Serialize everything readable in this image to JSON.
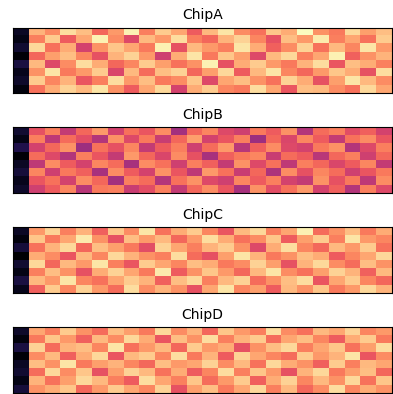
{
  "chart_data": [
    {
      "type": "heatmap",
      "title": "ChipA",
      "tick_labels": false,
      "cells": [
        [
          20,
          78,
          72,
          85,
          80,
          66,
          74,
          88,
          70,
          82,
          76,
          64,
          79,
          86,
          72,
          68,
          81,
          77,
          90,
          73,
          69,
          84,
          75,
          80
        ],
        [
          18,
          70,
          82,
          64,
          76,
          88,
          72,
          60,
          79,
          74,
          85,
          70,
          66,
          78,
          83,
          71,
          62,
          80,
          74,
          87,
          70,
          76,
          68,
          82
        ],
        [
          22,
          84,
          68,
          77,
          58,
          73,
          81,
          76,
          69,
          88,
          62,
          79,
          74,
          70,
          86,
          77,
          65,
          72,
          83,
          68,
          79,
          71,
          86,
          74
        ],
        [
          16,
          66,
          75,
          80,
          71,
          62,
          78,
          83,
          74,
          57,
          77,
          86,
          69,
          81,
          75,
          60,
          79,
          84,
          70,
          76,
          88,
          65,
          73,
          78
        ],
        [
          24,
          79,
          60,
          72,
          85,
          77,
          66,
          71,
          82,
          75,
          68,
          73,
          88,
          62,
          77,
          82,
          74,
          69,
          78,
          85,
          63,
          80,
          77,
          70
        ],
        [
          19,
          73,
          86,
          69,
          74,
          82,
          59,
          79,
          67,
          80,
          83,
          66,
          75,
          84,
          64,
          79,
          86,
          71,
          66,
          74,
          81,
          77,
          62,
          85
        ],
        [
          21,
          82,
          71,
          78,
          63,
          70,
          85,
          74,
          80,
          69,
          72,
          81,
          60,
          76,
          80,
          73,
          68,
          83,
          77,
          62,
          75,
          86,
          79,
          72
        ],
        [
          17,
          68,
          77,
          83,
          79,
          86,
          73,
          64,
          76,
          84,
          58,
          77,
          82,
          71,
          69,
          85,
          76,
          63,
          80,
          79,
          72,
          68,
          84,
          76
        ]
      ]
    },
    {
      "type": "heatmap",
      "title": "ChipB",
      "tick_labels": false,
      "cells": [
        [
          22,
          62,
          70,
          55,
          66,
          74,
          58,
          68,
          63,
          72,
          49,
          66,
          71,
          60,
          57,
          69,
          64,
          73,
          52,
          67,
          70,
          61,
          65,
          58
        ],
        [
          18,
          70,
          54,
          67,
          61,
          52,
          73,
          60,
          69,
          56,
          66,
          75,
          58,
          63,
          70,
          48,
          66,
          59,
          71,
          64,
          55,
          68,
          72,
          63
        ],
        [
          25,
          58,
          66,
          73,
          48,
          68,
          62,
          71,
          55,
          64,
          70,
          57,
          67,
          74,
          53,
          65,
          72,
          60,
          58,
          69,
          73,
          52,
          60,
          70
        ],
        [
          16,
          67,
          60,
          52,
          70,
          63,
          55,
          74,
          66,
          59,
          72,
          62,
          50,
          65,
          69,
          71,
          56,
          67,
          64,
          53,
          66,
          70,
          57,
          66
        ],
        [
          20,
          54,
          72,
          64,
          58,
          71,
          67,
          50,
          72,
          68,
          57,
          70,
          65,
          55,
          73,
          60,
          68,
          54,
          70,
          66,
          59,
          64,
          71,
          55
        ],
        [
          23,
          71,
          57,
          69,
          65,
          50,
          72,
          64,
          58,
          73,
          63,
          54,
          74,
          68,
          56,
          66,
          51,
          72,
          62,
          71,
          67,
          57,
          63,
          69
        ],
        [
          19,
          63,
          68,
          58,
          72,
          66,
          49,
          70,
          67,
          52,
          68,
          73,
          60,
          57,
          71,
          64,
          70,
          58,
          55,
          73,
          62,
          69,
          54,
          72
        ],
        [
          21,
          57,
          64,
          71,
          53,
          69,
          70,
          56,
          61,
          70,
          55,
          66,
          72,
          63,
          50,
          73,
          61,
          68,
          74,
          58,
          65,
          52,
          70,
          60
        ]
      ]
    },
    {
      "type": "heatmap",
      "title": "ChipC",
      "tick_labels": false,
      "cells": [
        [
          20,
          74,
          83,
          70,
          78,
          65,
          81,
          72,
          86,
          68,
          77,
          82,
          71,
          63,
          79,
          84,
          70,
          76,
          88,
          67,
          73,
          80,
          69,
          77
        ],
        [
          17,
          81,
          69,
          76,
          87,
          73,
          62,
          80,
          74,
          79,
          66,
          74,
          85,
          77,
          68,
          72,
          81,
          64,
          75,
          82,
          70,
          86,
          74,
          71
        ],
        [
          23,
          68,
          78,
          84,
          66,
          80,
          75,
          69,
          61,
          83,
          76,
          70,
          78,
          82,
          73,
          60,
          77,
          85,
          71,
          66,
          79,
          74,
          82,
          68
        ],
        [
          15,
          77,
          72,
          63,
          79,
          71,
          84,
          78,
          73,
          70,
          85,
          67,
          62,
          75,
          86,
          78,
          69,
          73,
          80,
          77,
          64,
          71,
          76,
          84
        ],
        [
          22,
          84,
          66,
          79,
          74,
          86,
          70,
          63,
          82,
          76,
          71,
          80,
          77,
          69,
          72,
          83,
          75,
          62,
          78,
          84,
          72,
          67,
          80,
          73
        ],
        [
          18,
          70,
          80,
          73,
          62,
          77,
          83,
          76,
          69,
          87,
          64,
          73,
          81,
          74,
          66,
          79,
          86,
          72,
          68,
          75,
          83,
          78,
          65,
          79
        ],
        [
          24,
          79,
          74,
          86,
          71,
          68,
          76,
          82,
          78,
          65,
          80,
          84,
          70,
          79,
          83,
          67,
          73,
          80,
          85,
          63,
          76,
          82,
          71,
          66
        ],
        [
          19,
          65,
          82,
          71,
          83,
          74,
          67,
          85,
          72,
          78,
          73,
          62,
          76,
          86,
          71,
          75,
          64,
          79,
          73,
          81,
          69,
          74,
          84,
          78
        ]
      ]
    },
    {
      "type": "heatmap",
      "title": "ChipD",
      "tick_labels": false,
      "cells": [
        [
          21,
          76,
          70,
          82,
          73,
          67,
          80,
          75,
          69,
          84,
          72,
          78,
          66,
          81,
          74,
          70,
          85,
          72,
          68,
          79,
          76,
          83,
          71,
          74
        ],
        [
          17,
          69,
          81,
          74,
          65,
          79,
          72,
          84,
          77,
          63,
          80,
          73,
          85,
          70,
          78,
          82,
          67,
          76,
          80,
          71,
          64,
          77,
          82,
          69
        ],
        [
          24,
          83,
          67,
          78,
          80,
          71,
          86,
          68,
          74,
          79,
          66,
          82,
          74,
          77,
          62,
          73,
          80,
          84,
          70,
          76,
          81,
          68,
          75,
          85
        ],
        [
          16,
          72,
          79,
          65,
          77,
          84,
          63,
          79,
          82,
          71,
          85,
          69,
          78,
          64,
          83,
          76,
          71,
          67,
          82,
          74,
          78,
          86,
          63,
          72
        ],
        [
          20,
          80,
          73,
          86,
          69,
          75,
          78,
          71,
          66,
          80,
          74,
          76,
          83,
          72,
          79,
          68,
          84,
          77,
          73,
          65,
          82,
          70,
          79,
          76
        ],
        [
          22,
          67,
          84,
          72,
          81,
          62,
          75,
          83,
          79,
          68,
          77,
          64,
          71,
          85,
          70,
          81,
          74,
          62,
          78,
          84,
          69,
          75,
          80,
          66
        ],
        [
          18,
          78,
          68,
          75,
          84,
          79,
          70,
          64,
          85,
          76,
          70,
          81,
          67,
          74,
          82,
          65,
          77,
          83,
          71,
          79,
          73,
          84,
          68,
          81
        ],
        [
          23,
          73,
          77,
          81,
          66,
          74,
          82,
          76,
          71,
          83,
          62,
          75,
          80,
          69,
          76,
          84,
          70,
          79,
          66,
          72,
          85,
          71,
          77,
          73
        ]
      ]
    }
  ]
}
